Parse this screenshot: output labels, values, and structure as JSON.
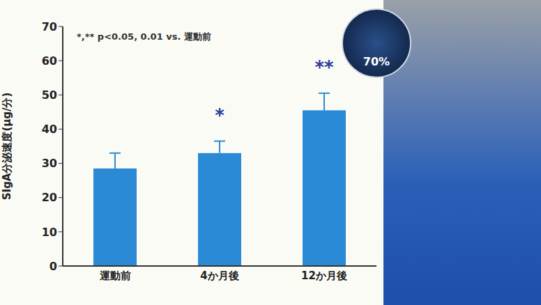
{
  "chart_data": {
    "type": "bar",
    "categories": [
      "運動前",
      "4か月後",
      "12か月後"
    ],
    "values": [
      28.5,
      33,
      45.5
    ],
    "errors": [
      4.5,
      3.5,
      5
    ],
    "color": "#2a8ad6",
    "ylim": [
      0,
      70
    ],
    "yticks": [
      0,
      10,
      20,
      30,
      40,
      50,
      60,
      70
    ],
    "grid": false,
    "y_label": "SIgA分泌速度(μg/分)",
    "annotations": [
      {
        "text": "*,** p<0.05, 0.01 vs. 運動前"
      },
      {
        "category": "4か月後",
        "text": "*"
      },
      {
        "category": "12か月後",
        "text": "**"
      },
      {
        "text": "70%"
      }
    ]
  }
}
